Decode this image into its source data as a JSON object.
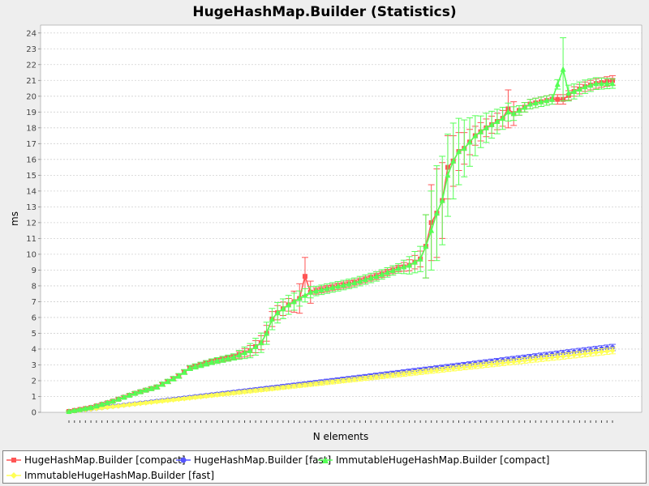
{
  "chart_data": {
    "type": "line",
    "title": "HugeHashMap.Builder (Statistics)",
    "xlabel": "N elements",
    "ylabel": "ms",
    "ylim": [
      0,
      24.5
    ],
    "yticks": [
      0,
      1,
      2,
      3,
      4,
      5,
      6,
      7,
      8,
      9,
      10,
      11,
      12,
      13,
      14,
      15,
      16,
      17,
      18,
      19,
      20,
      21,
      22,
      23,
      24
    ],
    "grid": true,
    "error_bars": true,
    "n_points": 100,
    "legend_position": "bottom",
    "series": [
      {
        "name": "HugeHashMap.Builder [compact]",
        "color": "#ff5555",
        "marker": "square",
        "anchors": [
          [
            0,
            0.05
          ],
          [
            4,
            0.3
          ],
          [
            8,
            0.7
          ],
          [
            12,
            1.2
          ],
          [
            16,
            1.6
          ],
          [
            20,
            2.3
          ],
          [
            22,
            2.8
          ],
          [
            26,
            3.2
          ],
          [
            30,
            3.5
          ],
          [
            33,
            3.9
          ],
          [
            35,
            4.4
          ],
          [
            36,
            5.0
          ],
          [
            37,
            5.9
          ],
          [
            38,
            6.3
          ],
          [
            40,
            6.8
          ],
          [
            42,
            7.2
          ],
          [
            43,
            8.6
          ],
          [
            44,
            7.6
          ],
          [
            48,
            7.9
          ],
          [
            52,
            8.2
          ],
          [
            56,
            8.6
          ],
          [
            60,
            9.1
          ],
          [
            62,
            9.3
          ],
          [
            64,
            9.7
          ],
          [
            65,
            10.5
          ],
          [
            66,
            12.0
          ],
          [
            67,
            12.6
          ],
          [
            68,
            13.4
          ],
          [
            69,
            15.5
          ],
          [
            70,
            15.9
          ],
          [
            71,
            16.5
          ],
          [
            72,
            16.7
          ],
          [
            74,
            17.5
          ],
          [
            76,
            18.0
          ],
          [
            78,
            18.4
          ],
          [
            79,
            18.6
          ],
          [
            80,
            19.2
          ],
          [
            81,
            18.9
          ],
          [
            84,
            19.5
          ],
          [
            88,
            19.8
          ],
          [
            90,
            19.8
          ],
          [
            92,
            20.3
          ],
          [
            94,
            20.6
          ],
          [
            96,
            20.8
          ],
          [
            99,
            21.0
          ]
        ],
        "error_anchors": [
          [
            0,
            0.05
          ],
          [
            30,
            0.15
          ],
          [
            36,
            0.5
          ],
          [
            40,
            0.4
          ],
          [
            43,
            1.2
          ],
          [
            45,
            0.2
          ],
          [
            60,
            0.2
          ],
          [
            64,
            0.5
          ],
          [
            65,
            2.0
          ],
          [
            67,
            2.8
          ],
          [
            69,
            2.0
          ],
          [
            71,
            1.2
          ],
          [
            74,
            0.6
          ],
          [
            79,
            0.5
          ],
          [
            80,
            1.2
          ],
          [
            82,
            0.3
          ],
          [
            99,
            0.3
          ]
        ]
      },
      {
        "name": "HugeHashMap.Builder [fast]",
        "color": "#5555ff",
        "marker": "circle",
        "anchors": [
          [
            0,
            0.05
          ],
          [
            99,
            4.1
          ]
        ],
        "error_anchors": [
          [
            0,
            0.05
          ],
          [
            99,
            0.2
          ]
        ]
      },
      {
        "name": "ImmutableHugeHashMap.Builder [compact]",
        "color": "#55ff55",
        "marker": "triangle",
        "anchors": [
          [
            0,
            0.05
          ],
          [
            4,
            0.3
          ],
          [
            8,
            0.7
          ],
          [
            12,
            1.2
          ],
          [
            16,
            1.6
          ],
          [
            20,
            2.3
          ],
          [
            22,
            2.8
          ],
          [
            26,
            3.2
          ],
          [
            30,
            3.5
          ],
          [
            33,
            3.9
          ],
          [
            35,
            4.4
          ],
          [
            36,
            5.0
          ],
          [
            37,
            5.9
          ],
          [
            38,
            6.3
          ],
          [
            40,
            6.8
          ],
          [
            42,
            7.2
          ],
          [
            44,
            7.6
          ],
          [
            48,
            7.9
          ],
          [
            52,
            8.2
          ],
          [
            56,
            8.6
          ],
          [
            60,
            9.1
          ],
          [
            62,
            9.3
          ],
          [
            64,
            9.7
          ],
          [
            65,
            10.5
          ],
          [
            66,
            11.5
          ],
          [
            67,
            12.6
          ],
          [
            68,
            13.4
          ],
          [
            69,
            15.0
          ],
          [
            70,
            15.9
          ],
          [
            71,
            16.5
          ],
          [
            72,
            16.7
          ],
          [
            74,
            17.5
          ],
          [
            76,
            18.0
          ],
          [
            78,
            18.4
          ],
          [
            79,
            18.6
          ],
          [
            80,
            19.0
          ],
          [
            81,
            18.9
          ],
          [
            84,
            19.5
          ],
          [
            88,
            19.8
          ],
          [
            90,
            21.7
          ],
          [
            91,
            20.2
          ],
          [
            92,
            20.3
          ],
          [
            94,
            20.6
          ],
          [
            96,
            20.8
          ],
          [
            99,
            20.8
          ]
        ],
        "error_anchors": [
          [
            0,
            0.05
          ],
          [
            30,
            0.2
          ],
          [
            36,
            0.7
          ],
          [
            40,
            0.6
          ],
          [
            45,
            0.3
          ],
          [
            60,
            0.3
          ],
          [
            64,
            0.8
          ],
          [
            65,
            2.0
          ],
          [
            67,
            3.0
          ],
          [
            70,
            2.4
          ],
          [
            72,
            1.8
          ],
          [
            75,
            1.0
          ],
          [
            79,
            0.7
          ],
          [
            82,
            0.3
          ],
          [
            89,
            0.3
          ],
          [
            90,
            2.0
          ],
          [
            91,
            0.5
          ],
          [
            99,
            0.3
          ]
        ]
      },
      {
        "name": "ImmutableHugeHashMap.Builder [fast]",
        "color": "#ffff55",
        "marker": "diamond",
        "anchors": [
          [
            0,
            0.05
          ],
          [
            99,
            3.9
          ]
        ],
        "error_anchors": [
          [
            0,
            0.05
          ],
          [
            99,
            0.2
          ]
        ]
      }
    ]
  }
}
